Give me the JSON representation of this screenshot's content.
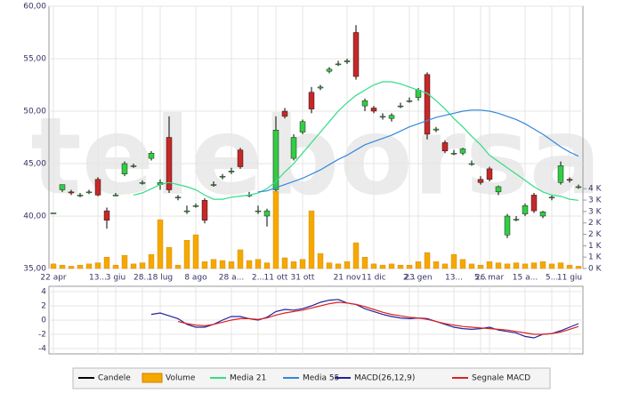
{
  "chart_data": [
    {
      "type": "candlestick",
      "watermark": "teleborsa",
      "grid": true,
      "ylim": [
        35,
        60
      ],
      "yticks": [
        {
          "value": 35,
          "label": "35,00"
        },
        {
          "value": 40,
          "label": "40,00"
        },
        {
          "value": 45,
          "label": "45,00"
        },
        {
          "value": 50,
          "label": "50,00"
        },
        {
          "value": 55,
          "label": "55,00"
        },
        {
          "value": 60,
          "label": "60,00"
        }
      ],
      "y2lim": [
        0,
        11500
      ],
      "y2ticks": [
        {
          "value": 0,
          "label": "0 K"
        },
        {
          "value": 500,
          "label": "1 K"
        },
        {
          "value": 1000,
          "label": "1 K"
        },
        {
          "value": 1500,
          "label": "2 K"
        },
        {
          "value": 2000,
          "label": "2 K"
        },
        {
          "value": 2500,
          "label": "3 K"
        },
        {
          "value": 3000,
          "label": "3 K"
        },
        {
          "value": 3500,
          "label": "4 K"
        }
      ],
      "categories": [
        "22 apr",
        null,
        null,
        null,
        null,
        "13...",
        null,
        "3 giu",
        null,
        null,
        "28...",
        null,
        "18 lug",
        null,
        null,
        null,
        "8 ago",
        null,
        null,
        null,
        "28 a...",
        null,
        null,
        "2...",
        null,
        "11 ott",
        null,
        null,
        "31 ott",
        null,
        null,
        null,
        null,
        "21 nov",
        null,
        null,
        "11 dic",
        null,
        null,
        null,
        "2...",
        "23 gen",
        null,
        null,
        null,
        "13...",
        null,
        null,
        "5...",
        "26 mar",
        null,
        null,
        null,
        "15 a...",
        null,
        null,
        "5...",
        null,
        "11 giu",
        null
      ],
      "series": [
        {
          "name": "Candele",
          "color": "#000000",
          "up_color": "#33cc44",
          "down_color": "#c62828",
          "open": [
            40.3,
            42.5,
            42.3,
            42.0,
            42.3,
            43.5,
            40.5,
            42.0,
            44.0,
            44.8,
            43.2,
            45.5,
            43.0,
            47.5,
            41.8,
            40.5,
            41.0,
            41.5,
            43.0,
            43.8,
            44.2,
            46.3,
            42.0,
            40.5,
            40.0,
            42.5,
            50.0,
            45.5,
            48.0,
            51.8,
            52.2,
            53.8,
            54.5,
            54.7,
            57.5,
            50.5,
            50.3,
            49.5,
            49.3,
            50.5,
            51.0,
            51.3,
            53.5,
            48.2,
            47.0,
            46.0,
            46.0,
            45.0,
            43.5,
            44.5,
            42.3,
            38.2,
            39.7,
            40.2,
            42.0,
            40.0,
            41.8,
            43.2,
            43.5,
            42.8
          ],
          "high": [
            40.3,
            43.0,
            42.5,
            42.2,
            42.5,
            43.7,
            40.8,
            42.2,
            45.2,
            45.0,
            43.4,
            46.2,
            43.5,
            49.5,
            42.0,
            41.0,
            41.2,
            41.7,
            43.3,
            44.0,
            44.6,
            46.5,
            42.3,
            41.0,
            40.7,
            49.5,
            50.3,
            47.8,
            49.2,
            52.3,
            52.5,
            54.2,
            54.8,
            55.0,
            58.2,
            51.2,
            50.5,
            49.8,
            49.8,
            50.8,
            51.3,
            52.2,
            53.7,
            48.5,
            47.2,
            46.3,
            46.5,
            45.3,
            43.8,
            44.7,
            42.9,
            40.2,
            40.0,
            41.2,
            42.2,
            40.5,
            42.0,
            45.2,
            43.7,
            43.0
          ],
          "low": [
            40.3,
            42.3,
            42.0,
            41.8,
            42.1,
            41.9,
            38.8,
            41.9,
            43.8,
            44.6,
            43.0,
            45.3,
            42.5,
            42.2,
            41.5,
            40.2,
            40.8,
            39.3,
            42.8,
            43.5,
            44.0,
            44.5,
            41.8,
            40.2,
            39.0,
            42.2,
            49.3,
            45.3,
            47.8,
            49.8,
            52.0,
            53.6,
            54.3,
            54.5,
            53.0,
            50.0,
            49.8,
            49.2,
            49.0,
            50.3,
            50.8,
            51.0,
            47.3,
            48.0,
            46.0,
            45.8,
            45.8,
            44.8,
            43.0,
            43.3,
            42.0,
            37.9,
            39.5,
            40.0,
            40.3,
            39.8,
            41.5,
            43.0,
            43.2,
            42.6
          ],
          "close": [
            40.3,
            43.0,
            42.2,
            42.0,
            42.3,
            42.0,
            39.6,
            42.0,
            45.0,
            44.8,
            43.2,
            46.0,
            43.2,
            42.5,
            41.8,
            40.5,
            41.0,
            39.6,
            43.0,
            43.8,
            44.3,
            44.7,
            42.0,
            40.5,
            40.5,
            48.2,
            49.5,
            47.5,
            49.0,
            50.2,
            52.3,
            54.0,
            54.5,
            54.8,
            53.3,
            51.0,
            50.0,
            49.5,
            49.6,
            50.5,
            51.0,
            52.0,
            47.8,
            48.3,
            46.2,
            46.0,
            46.4,
            45.0,
            43.2,
            43.5,
            42.8,
            40.0,
            39.7,
            41.0,
            40.5,
            40.4,
            41.8,
            44.8,
            43.4,
            42.8
          ]
        },
        {
          "name": "Volume",
          "color": "#f5a800",
          "axis": "y2",
          "values": [
            200,
            150,
            100,
            150,
            200,
            250,
            500,
            150,
            580,
            200,
            250,
            620,
            2140,
            930,
            150,
            1240,
            1480,
            300,
            400,
            350,
            300,
            820,
            350,
            400,
            250,
            3380,
            470,
            300,
            400,
            2530,
            660,
            250,
            200,
            300,
            1130,
            500,
            200,
            150,
            200,
            150,
            150,
            300,
            700,
            300,
            200,
            620,
            400,
            200,
            150,
            300,
            250,
            200,
            250,
            200,
            250,
            300,
            200,
            250,
            150,
            100
          ]
        },
        {
          "name": "Media 21",
          "color": "#33dd88",
          "values": [
            null,
            null,
            null,
            null,
            null,
            null,
            null,
            null,
            null,
            42.0,
            42.2,
            42.6,
            43.0,
            43.2,
            43.0,
            42.8,
            42.5,
            42.0,
            41.6,
            41.6,
            41.8,
            41.9,
            42.0,
            42.2,
            42.6,
            43.3,
            44.2,
            45.0,
            46.0,
            47.0,
            48.0,
            49.0,
            50.0,
            50.8,
            51.5,
            52.0,
            52.5,
            52.8,
            52.8,
            52.6,
            52.3,
            52.0,
            51.7,
            51.0,
            50.2,
            49.3,
            48.5,
            47.6,
            46.8,
            45.8,
            45.2,
            44.6,
            44.0,
            43.4,
            42.8,
            42.3,
            42.0,
            41.9,
            41.6,
            41.5
          ]
        },
        {
          "name": "Media 55",
          "color": "#3388dd",
          "values": [
            null,
            null,
            null,
            null,
            null,
            null,
            null,
            null,
            null,
            null,
            null,
            null,
            null,
            null,
            null,
            null,
            null,
            null,
            null,
            null,
            null,
            null,
            null,
            42.3,
            42.4,
            42.7,
            43.0,
            43.3,
            43.6,
            44.0,
            44.4,
            44.9,
            45.4,
            45.8,
            46.3,
            46.8,
            47.1,
            47.4,
            47.7,
            48.1,
            48.5,
            48.8,
            49.1,
            49.4,
            49.6,
            49.8,
            50.0,
            50.1,
            50.1,
            50.0,
            49.8,
            49.5,
            49.2,
            48.8,
            48.3,
            47.8,
            47.2,
            46.6,
            46.1,
            45.7
          ]
        }
      ]
    },
    {
      "type": "line",
      "grid": true,
      "ylim": [
        -4,
        4
      ],
      "yticks": [
        4,
        2,
        0,
        -2,
        -4
      ],
      "series": [
        {
          "name": "MACD(26,12,9)",
          "color": "#22229a",
          "values": [
            null,
            null,
            null,
            null,
            null,
            null,
            null,
            null,
            null,
            null,
            null,
            0.8,
            1.0,
            0.6,
            0.2,
            -0.6,
            -1.0,
            -1.0,
            -0.6,
            0,
            0.5,
            0.5,
            0.2,
            0.0,
            0.4,
            1.2,
            1.5,
            1.4,
            1.6,
            2.0,
            2.5,
            2.8,
            2.9,
            2.4,
            2.2,
            1.6,
            1.2,
            0.8,
            0.5,
            0.3,
            0.2,
            0.3,
            0.2,
            -0.2,
            -0.6,
            -1.0,
            -1.2,
            -1.3,
            -1.2,
            -1.0,
            -1.4,
            -1.6,
            -1.8,
            -2.3,
            -2.5,
            -2.0,
            -1.9,
            -1.5,
            -1.0,
            -0.5
          ]
        },
        {
          "name": "Segnale MACD",
          "color": "#dd2222",
          "values": [
            null,
            null,
            null,
            null,
            null,
            null,
            null,
            null,
            null,
            null,
            null,
            null,
            null,
            null,
            -0.2,
            -0.5,
            -0.7,
            -0.8,
            -0.6,
            -0.3,
            0.0,
            0.2,
            0.2,
            0.1,
            0.3,
            0.7,
            1.0,
            1.2,
            1.4,
            1.7,
            2.0,
            2.3,
            2.5,
            2.4,
            2.2,
            1.9,
            1.5,
            1.1,
            0.8,
            0.6,
            0.4,
            0.3,
            0.1,
            -0.2,
            -0.5,
            -0.7,
            -0.9,
            -1.0,
            -1.1,
            -1.2,
            -1.3,
            -1.4,
            -1.6,
            -1.8,
            -2.0,
            -2.0,
            -1.9,
            -1.7,
            -1.3,
            -0.9
          ]
        }
      ]
    }
  ]
}
